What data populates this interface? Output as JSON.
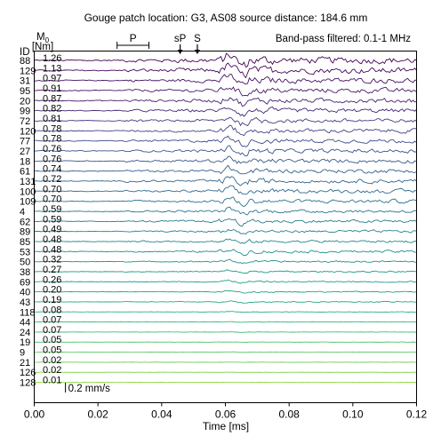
{
  "chart_data": {
    "type": "line",
    "title": "Gouge patch location: G3, AS08 source distance: 184.6 mm",
    "annotation_filter": "Band-pass filtered: 0.1-1 MHz",
    "xlabel": "Time [ms]",
    "xlim": [
      0.0,
      0.12
    ],
    "xticks": [
      "0.00",
      "0.02",
      "0.04",
      "0.06",
      "0.08",
      "0.10",
      "0.12"
    ],
    "xtick_values": [
      0.0,
      0.02,
      0.04,
      0.06,
      0.08,
      0.1,
      0.12
    ],
    "col_header_id": "ID",
    "col_header_m0": "M",
    "col_header_m0_sub": "0",
    "col_header_unit": "[Nm]",
    "phase_markers": [
      {
        "label": "P",
        "t_start": 0.026,
        "t_end": 0.036
      },
      {
        "label": "sP",
        "t": 0.0458
      },
      {
        "label": "S",
        "t": 0.0512
      }
    ],
    "scale_bar_label": "0.2 mm/s",
    "scale_bar_t": 0.0098,
    "series": [
      {
        "id": "88",
        "m0": "1.26",
        "color": "#440154"
      },
      {
        "id": "129",
        "m0": "1.13",
        "color": "#46085c"
      },
      {
        "id": "31",
        "m0": "0.97",
        "color": "#471164"
      },
      {
        "id": "95",
        "m0": "0.91",
        "color": "#48186a"
      },
      {
        "id": "20",
        "m0": "0.87",
        "color": "#472070"
      },
      {
        "id": "99",
        "m0": "0.82",
        "color": "#462777"
      },
      {
        "id": "72",
        "m0": "0.81",
        "color": "#443a83"
      },
      {
        "id": "120",
        "m0": "0.78",
        "color": "#414487"
      },
      {
        "id": "77",
        "m0": "0.78",
        "color": "#3e4c8a"
      },
      {
        "id": "27",
        "m0": "0.76",
        "color": "#3b528b"
      },
      {
        "id": "18",
        "m0": "0.76",
        "color": "#38598c"
      },
      {
        "id": "61",
        "m0": "0.74",
        "color": "#355f8d"
      },
      {
        "id": "131",
        "m0": "0.72",
        "color": "#32658e"
      },
      {
        "id": "100",
        "m0": "0.70",
        "color": "#2f6b8e"
      },
      {
        "id": "109",
        "m0": "0.70",
        "color": "#2c718e"
      },
      {
        "id": "4",
        "m0": "0.59",
        "color": "#2a768e"
      },
      {
        "id": "62",
        "m0": "0.59",
        "color": "#277c8e"
      },
      {
        "id": "89",
        "m0": "0.49",
        "color": "#25828e"
      },
      {
        "id": "85",
        "m0": "0.48",
        "color": "#23878e"
      },
      {
        "id": "53",
        "m0": "0.48",
        "color": "#218d8d"
      },
      {
        "id": "50",
        "m0": "0.32",
        "color": "#1f928c"
      },
      {
        "id": "38",
        "m0": "0.27",
        "color": "#1f988b"
      },
      {
        "id": "69",
        "m0": "0.26",
        "color": "#1f9e89"
      },
      {
        "id": "40",
        "m0": "0.20",
        "color": "#22a385"
      },
      {
        "id": "43",
        "m0": "0.19",
        "color": "#26a982"
      },
      {
        "id": "118",
        "m0": "0.08",
        "color": "#2eb37c"
      },
      {
        "id": "44",
        "m0": "0.07",
        "color": "#35b779"
      },
      {
        "id": "24",
        "m0": "0.07",
        "color": "#42be71"
      },
      {
        "id": "19",
        "m0": "0.05",
        "color": "#4ec36b"
      },
      {
        "id": "9",
        "m0": "0.05",
        "color": "#5ec962"
      },
      {
        "id": "21",
        "m0": "0.02",
        "color": "#6ece58"
      },
      {
        "id": "126",
        "m0": "0.02",
        "color": "#7fd34e"
      },
      {
        "id": "128",
        "m0": "0.01",
        "color": "#90d743"
      }
    ]
  }
}
